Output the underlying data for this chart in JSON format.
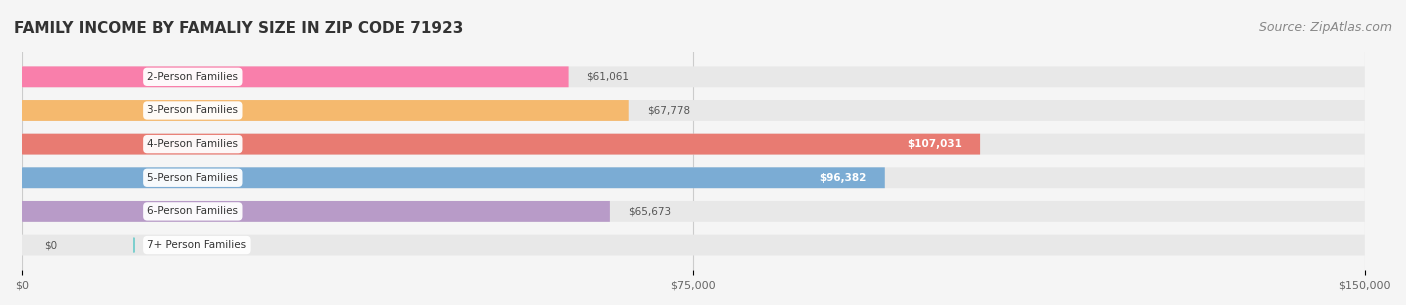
{
  "title": "FAMILY INCOME BY FAMALIY SIZE IN ZIP CODE 71923",
  "source": "Source: ZipAtlas.com",
  "categories": [
    "2-Person Families",
    "3-Person Families",
    "4-Person Families",
    "5-Person Families",
    "6-Person Families",
    "7+ Person Families"
  ],
  "values": [
    61061,
    67778,
    107031,
    96382,
    65673,
    0
  ],
  "bar_colors": [
    "#F97FAB",
    "#F5B96E",
    "#E87B72",
    "#7BACD4",
    "#B89BC8",
    "#7DCFCE"
  ],
  "label_colors": [
    "#555555",
    "#555555",
    "#ffffff",
    "#ffffff",
    "#555555",
    "#555555"
  ],
  "xlim": [
    0,
    150000
  ],
  "xticks": [
    0,
    75000,
    150000
  ],
  "xtick_labels": [
    "$0",
    "$75,000",
    "$150,000"
  ],
  "background_color": "#f5f5f5",
  "bar_background": "#e8e8e8",
  "title_color": "#333333",
  "source_color": "#888888",
  "title_fontsize": 11,
  "source_fontsize": 9,
  "bar_height": 0.62,
  "value_labels": [
    "$61,061",
    "$67,778",
    "$107,031",
    "$96,382",
    "$65,673",
    "$0"
  ]
}
